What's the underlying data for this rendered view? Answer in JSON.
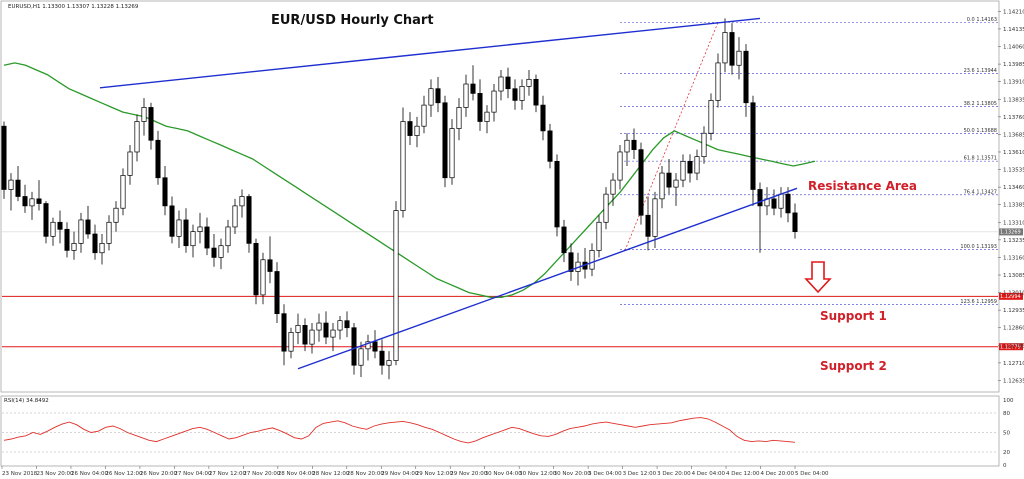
{
  "header": {
    "symbol_line": "EURUSD,H1  1.13300 1.13307 1.13228 1.13269",
    "rsi_label": "RSI(14) 34.8492"
  },
  "chart_data": {
    "type": "candlestick",
    "title": "EUR/USD Hourly Chart",
    "ylim": [
      1.1259,
      1.1425
    ],
    "y_ticks": [
      "1.14210",
      "1.14135",
      "1.14060",
      "1.13985",
      "1.13910",
      "1.13835",
      "1.13760",
      "1.13685",
      "1.13610",
      "1.13535",
      "1.13460",
      "1.13385",
      "1.13310",
      "1.13235",
      "1.13160",
      "1.13085",
      "1.13010",
      "1.12935",
      "1.12860",
      "1.12785",
      "1.12710",
      "1.12635"
    ],
    "x_ticks": [
      "23 Nov 2018",
      "23 Nov 20:00",
      "26 Nov 04:00",
      "26 Nov 12:00",
      "26 Nov 20:00",
      "27 Nov 04:00",
      "27 Nov 12:00",
      "27 Nov 20:00",
      "28 Nov 04:00",
      "28 Nov 12:00",
      "28 Nov 20:00",
      "29 Nov 04:00",
      "29 Nov 12:00",
      "29 Nov 20:00",
      "30 Nov 04:00",
      "30 Nov 12:00",
      "30 Nov 20:00",
      "3 Dec 04:00",
      "3 Dec 12:00",
      "3 Dec 20:00",
      "4 Dec 04:00",
      "4 Dec 12:00",
      "4 Dec 20:00",
      "5 Dec 04:00"
    ],
    "candles": [
      [
        1.1372,
        1.1374,
        1.1341,
        1.1345
      ],
      [
        1.1345,
        1.1352,
        1.1336,
        1.1349
      ],
      [
        1.1349,
        1.1355,
        1.134,
        1.1342
      ],
      [
        1.1342,
        1.1347,
        1.1335,
        1.1338
      ],
      [
        1.1338,
        1.1344,
        1.1332,
        1.1341
      ],
      [
        1.1341,
        1.1349,
        1.1336,
        1.1339
      ],
      [
        1.1339,
        1.134,
        1.1322,
        1.1325
      ],
      [
        1.1325,
        1.1333,
        1.1321,
        1.1331
      ],
      [
        1.1331,
        1.1336,
        1.1322,
        1.1328
      ],
      [
        1.1328,
        1.1331,
        1.1316,
        1.1319
      ],
      [
        1.1319,
        1.1327,
        1.1315,
        1.1322
      ],
      [
        1.1322,
        1.1335,
        1.1318,
        1.1332
      ],
      [
        1.1332,
        1.1338,
        1.1324,
        1.1326
      ],
      [
        1.1326,
        1.133,
        1.1315,
        1.1318
      ],
      [
        1.1318,
        1.1326,
        1.1313,
        1.1322
      ],
      [
        1.1322,
        1.1334,
        1.1319,
        1.1331
      ],
      [
        1.1331,
        1.134,
        1.1327,
        1.1337
      ],
      [
        1.1337,
        1.1354,
        1.1334,
        1.1351
      ],
      [
        1.1351,
        1.1364,
        1.1347,
        1.1361
      ],
      [
        1.1361,
        1.1377,
        1.1357,
        1.1374
      ],
      [
        1.1374,
        1.1384,
        1.1368,
        1.138
      ],
      [
        1.138,
        1.1382,
        1.1362,
        1.1366
      ],
      [
        1.1366,
        1.137,
        1.1347,
        1.135
      ],
      [
        1.135,
        1.1355,
        1.1334,
        1.1338
      ],
      [
        1.1338,
        1.1342,
        1.1322,
        1.1325
      ],
      [
        1.1325,
        1.1336,
        1.132,
        1.1332
      ],
      [
        1.1332,
        1.1337,
        1.1318,
        1.1321
      ],
      [
        1.1321,
        1.133,
        1.1316,
        1.1327
      ],
      [
        1.1327,
        1.1335,
        1.1322,
        1.1329
      ],
      [
        1.1329,
        1.1333,
        1.1317,
        1.132
      ],
      [
        1.132,
        1.1326,
        1.1312,
        1.1316
      ],
      [
        1.1316,
        1.1324,
        1.1311,
        1.1321
      ],
      [
        1.1321,
        1.1332,
        1.1318,
        1.1329
      ],
      [
        1.1329,
        1.1341,
        1.1326,
        1.1338
      ],
      [
        1.1338,
        1.1345,
        1.1333,
        1.1342
      ],
      [
        1.1342,
        1.1343,
        1.1318,
        1.1322
      ],
      [
        1.1322,
        1.1324,
        1.1296,
        1.13
      ],
      [
        1.13,
        1.1318,
        1.1296,
        1.1315
      ],
      [
        1.1315,
        1.1325,
        1.1305,
        1.131
      ],
      [
        1.131,
        1.1314,
        1.1288,
        1.1292
      ],
      [
        1.1292,
        1.1296,
        1.127,
        1.1276
      ],
      [
        1.1276,
        1.1286,
        1.1273,
        1.1284
      ],
      [
        1.1284,
        1.1292,
        1.1279,
        1.1287
      ],
      [
        1.1287,
        1.129,
        1.1276,
        1.1279
      ],
      [
        1.1279,
        1.1288,
        1.1275,
        1.1285
      ],
      [
        1.1285,
        1.1292,
        1.128,
        1.1288
      ],
      [
        1.1288,
        1.1293,
        1.1279,
        1.1282
      ],
      [
        1.1282,
        1.1288,
        1.1276,
        1.1285
      ],
      [
        1.1285,
        1.1291,
        1.1281,
        1.1289
      ],
      [
        1.1289,
        1.1293,
        1.1282,
        1.1286
      ],
      [
        1.1286,
        1.1288,
        1.1266,
        1.127
      ],
      [
        1.127,
        1.128,
        1.1265,
        1.1277
      ],
      [
        1.1277,
        1.1283,
        1.1272,
        1.128
      ],
      [
        1.128,
        1.1285,
        1.1273,
        1.1276
      ],
      [
        1.1276,
        1.1281,
        1.1266,
        1.127
      ],
      [
        1.127,
        1.1276,
        1.1264,
        1.1272
      ],
      [
        1.1272,
        1.134,
        1.127,
        1.1336
      ],
      [
        1.1336,
        1.138,
        1.1333,
        1.1374
      ],
      [
        1.1374,
        1.1378,
        1.1364,
        1.1368
      ],
      [
        1.1368,
        1.1376,
        1.1363,
        1.1372
      ],
      [
        1.1372,
        1.1385,
        1.1369,
        1.1381
      ],
      [
        1.1381,
        1.1392,
        1.1376,
        1.1388
      ],
      [
        1.1388,
        1.1393,
        1.1378,
        1.1382
      ],
      [
        1.1382,
        1.1385,
        1.1346,
        1.135
      ],
      [
        1.135,
        1.1375,
        1.1347,
        1.1371
      ],
      [
        1.1371,
        1.1384,
        1.1366,
        1.138
      ],
      [
        1.138,
        1.1394,
        1.1376,
        1.139
      ],
      [
        1.139,
        1.1398,
        1.1383,
        1.1386
      ],
      [
        1.1386,
        1.1392,
        1.137,
        1.1374
      ],
      [
        1.1374,
        1.1381,
        1.1369,
        1.1378
      ],
      [
        1.1378,
        1.139,
        1.1374,
        1.1387
      ],
      [
        1.1387,
        1.1396,
        1.1383,
        1.1393
      ],
      [
        1.1393,
        1.1397,
        1.1384,
        1.1388
      ],
      [
        1.1388,
        1.1392,
        1.1379,
        1.1383
      ],
      [
        1.1383,
        1.1392,
        1.1379,
        1.1389
      ],
      [
        1.1389,
        1.1396,
        1.1385,
        1.1392
      ],
      [
        1.1392,
        1.1394,
        1.1378,
        1.1381
      ],
      [
        1.1381,
        1.1385,
        1.1366,
        1.137
      ],
      [
        1.137,
        1.1373,
        1.1354,
        1.1357
      ],
      [
        1.1357,
        1.136,
        1.1325,
        1.1329
      ],
      [
        1.1329,
        1.1332,
        1.1314,
        1.1318
      ],
      [
        1.1318,
        1.1322,
        1.1306,
        1.131
      ],
      [
        1.131,
        1.1318,
        1.1304,
        1.1314
      ],
      [
        1.1314,
        1.132,
        1.1307,
        1.1311
      ],
      [
        1.1311,
        1.1322,
        1.1308,
        1.1319
      ],
      [
        1.1319,
        1.1334,
        1.1316,
        1.1331
      ],
      [
        1.1331,
        1.1346,
        1.1328,
        1.1343
      ],
      [
        1.1343,
        1.1352,
        1.1338,
        1.1349
      ],
      [
        1.1349,
        1.1364,
        1.1345,
        1.1361
      ],
      [
        1.1361,
        1.1369,
        1.1355,
        1.1366
      ],
      [
        1.1366,
        1.1371,
        1.1358,
        1.1362
      ],
      [
        1.1362,
        1.1365,
        1.133,
        1.1334
      ],
      [
        1.1334,
        1.1342,
        1.1319,
        1.1325
      ],
      [
        1.1325,
        1.1344,
        1.132,
        1.1341
      ],
      [
        1.1341,
        1.1355,
        1.1337,
        1.1352
      ],
      [
        1.1352,
        1.1358,
        1.1343,
        1.1346
      ],
      [
        1.1346,
        1.1352,
        1.1338,
        1.1349
      ],
      [
        1.1349,
        1.136,
        1.1346,
        1.1357
      ],
      [
        1.1357,
        1.136,
        1.1348,
        1.1352
      ],
      [
        1.1352,
        1.1362,
        1.1349,
        1.1359
      ],
      [
        1.1359,
        1.1372,
        1.1356,
        1.1369
      ],
      [
        1.1369,
        1.1386,
        1.1366,
        1.1383
      ],
      [
        1.1383,
        1.1403,
        1.138,
        1.1399
      ],
      [
        1.1399,
        1.1418,
        1.1395,
        1.1412
      ],
      [
        1.1412,
        1.1416,
        1.1394,
        1.1398
      ],
      [
        1.1398,
        1.141,
        1.1392,
        1.1404
      ],
      [
        1.1404,
        1.1407,
        1.1376,
        1.1382
      ],
      [
        1.1382,
        1.1385,
        1.1338,
        1.1345
      ],
      [
        1.1345,
        1.1348,
        1.1318,
        1.1338
      ],
      [
        1.1338,
        1.1346,
        1.1334,
        1.1341
      ],
      [
        1.1341,
        1.1345,
        1.1334,
        1.1337
      ],
      [
        1.1337,
        1.1346,
        1.1333,
        1.1343
      ],
      [
        1.1343,
        1.1346,
        1.1331,
        1.1335
      ],
      [
        1.1335,
        1.1339,
        1.1324,
        1.1327
      ]
    ],
    "ma": [
      1.1398,
      1.1399,
      1.1398,
      1.1396,
      1.1394,
      1.1391,
      1.1388,
      1.1386,
      1.1384,
      1.1382,
      1.138,
      1.1378,
      1.1377,
      1.1376,
      1.1374,
      1.1372,
      1.1371,
      1.137,
      1.1368,
      1.1366,
      1.1364,
      1.1362,
      1.136,
      1.1358,
      1.1355,
      1.1352,
      1.1349,
      1.1346,
      1.1343,
      1.134,
      1.1337,
      1.1334,
      1.1331,
      1.1328,
      1.1325,
      1.1322,
      1.1319,
      1.1316,
      1.1313,
      1.131,
      1.1307,
      1.1305,
      1.1303,
      1.1301,
      1.13,
      1.1299,
      1.1299,
      1.13,
      1.1302,
      1.1305,
      1.1309,
      1.1314,
      1.1319,
      1.1324,
      1.1329,
      1.1334,
      1.1339,
      1.1344,
      1.135,
      1.1356,
      1.1362,
      1.1367,
      1.137,
      1.1368,
      1.1366,
      1.1364,
      1.1362,
      1.1361,
      1.136,
      1.1359,
      1.1358,
      1.1357,
      1.1356,
      1.1355,
      1.1356,
      1.1357
    ],
    "ma_x": [
      0,
      1.6,
      3.2,
      4.8,
      6.4,
      8.0,
      9.6,
      11.2,
      12.8,
      14.4,
      16.0,
      17.6,
      19.2,
      20.8,
      22.4,
      24.0,
      25.6,
      27.2,
      28.8,
      30.4,
      32.0,
      33.6,
      35.2,
      36.8,
      38.4,
      40.0,
      41.6,
      43.2,
      44.8,
      46.4,
      48.0,
      49.6,
      51.2,
      52.8,
      54.4,
      56.0,
      57.6,
      59.2,
      60.8,
      62.4,
      64.0,
      65.6,
      67.2,
      68.8,
      70.4,
      72.0,
      73.6,
      75.2,
      76.8,
      78.4,
      80.0,
      81.6,
      83.2,
      84.8,
      86.4,
      88.0,
      89.6,
      91.2,
      92.8,
      94.4,
      96.0,
      97.6,
      99.2,
      100.8,
      102.4,
      104.0,
      105.6,
      107.2,
      108.8,
      110.4,
      112.0,
      113.6,
      115.2,
      116.8,
      118.4,
      120.0
    ],
    "rsi": [
      38,
      40,
      43,
      45,
      50,
      47,
      52,
      58,
      63,
      66,
      62,
      55,
      50,
      52,
      58,
      60,
      56,
      50,
      46,
      42,
      38,
      36,
      40,
      44,
      48,
      52,
      56,
      58,
      55,
      50,
      45,
      40,
      42,
      46,
      50,
      52,
      55,
      57,
      53,
      48,
      42,
      40,
      45,
      58,
      64,
      66,
      68,
      65,
      60,
      57,
      55,
      60,
      63,
      65,
      66,
      67,
      65,
      62,
      58,
      55,
      50,
      45,
      40,
      36,
      34,
      37,
      42,
      46,
      50,
      54,
      58,
      56,
      52,
      48,
      45,
      44,
      47,
      52,
      56,
      58,
      60,
      63,
      65,
      66,
      64,
      62,
      60,
      58,
      60,
      62,
      63,
      64,
      65,
      68,
      70,
      72,
      73,
      71,
      66,
      60,
      54,
      44,
      38,
      36,
      37,
      36,
      38,
      37,
      36,
      35
    ]
  },
  "fib_levels": [
    {
      "label": "0.0  1.14163",
      "price": 1.14163
    },
    {
      "label": "23.6  1.13944",
      "price": 1.13944
    },
    {
      "label": "38.2  1.13805",
      "price": 1.13805
    },
    {
      "label": "50.0  1.13688",
      "price": 1.13688
    },
    {
      "label": "61.8  1.13571",
      "price": 1.13571
    },
    {
      "label": "76.4  1.13427",
      "price": 1.13427
    },
    {
      "label": "100.0  1.13193",
      "price": 1.13193
    },
    {
      "label": "123.6  1.12959",
      "price": 1.12959
    }
  ],
  "horizontal_lines": [
    {
      "name": "support-1",
      "price": 1.12994,
      "tag": "1.12994"
    },
    {
      "name": "support-2",
      "price": 1.12779,
      "tag": "1.12779"
    },
    {
      "name": "current-price",
      "price": 1.13269,
      "tag": "1.13269"
    }
  ],
  "annotations": {
    "resistance": "Resistance Area",
    "support1": "Support 1",
    "support2": "Support 2"
  },
  "rsi_ticks": [
    "100",
    "80",
    "50",
    "20",
    "0"
  ],
  "colors": {
    "bull": "#000000",
    "bear": "#000000",
    "ma": "#2a9a2a",
    "trend": "#1f2fcf",
    "support": "#e01818",
    "rsi": "#e0302a",
    "fib": "#3a3acf",
    "arrow": "#e01818"
  }
}
